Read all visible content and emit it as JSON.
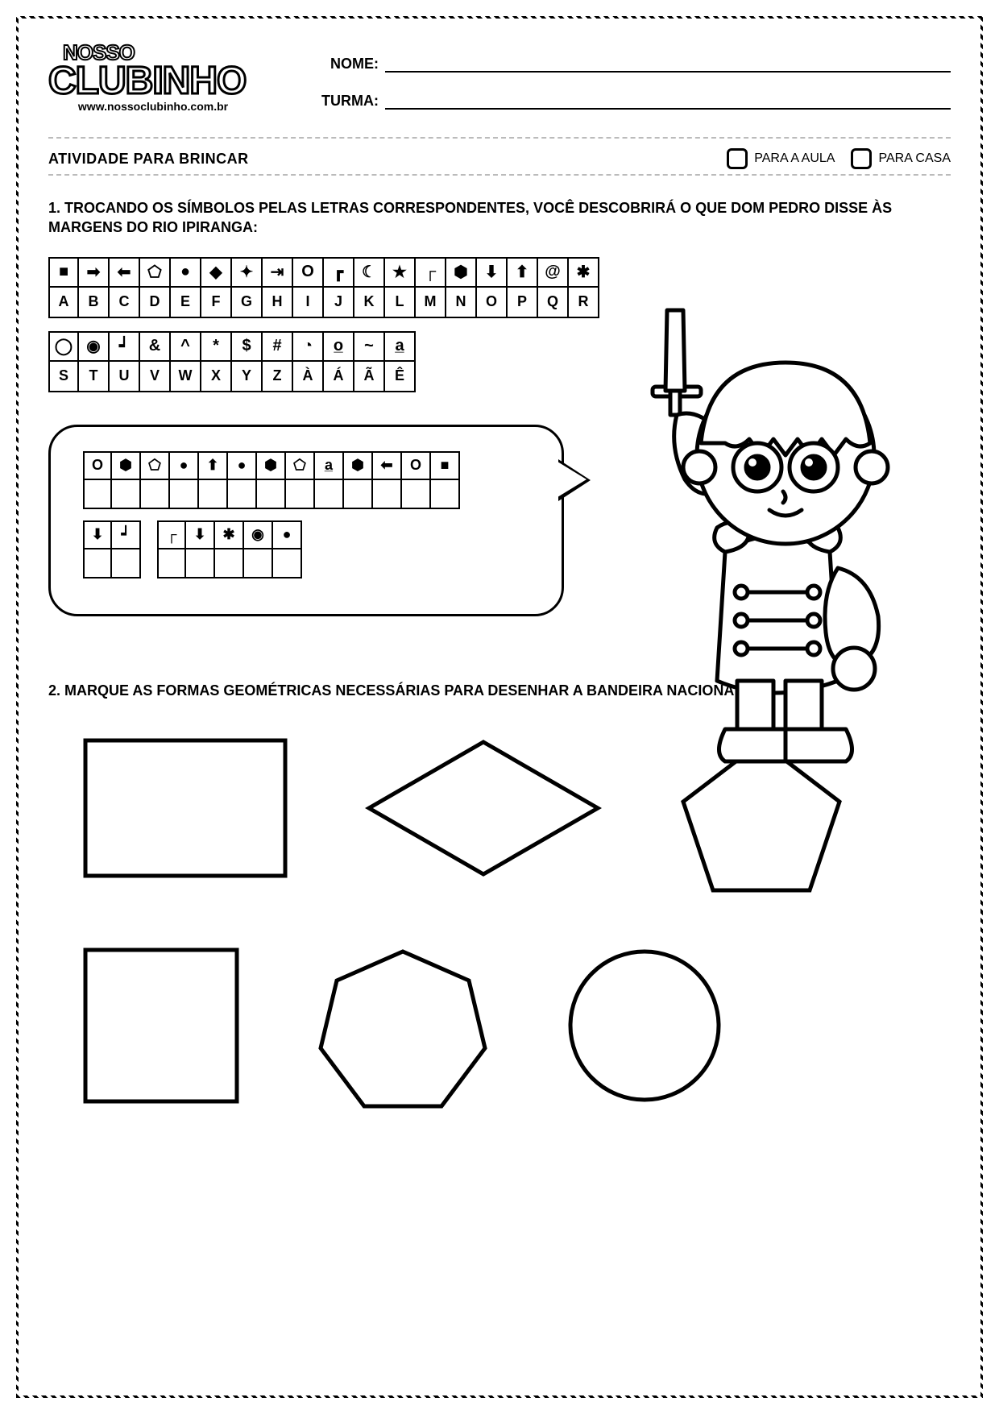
{
  "logo": {
    "line1": "NOSSO",
    "line2": "CLUBINHO",
    "url": "www.nossoclubinho.com.br"
  },
  "fields": {
    "name_label": "NOME:",
    "class_label": "TURMA:"
  },
  "banner": {
    "title": "ATIVIDADE PARA BRINCAR",
    "check1": "PARA A AULA",
    "check2": "PARA CASA"
  },
  "q1": {
    "text": "1. TROCANDO OS SÍMBOLOS PELAS LETRAS CORRESPONDENTES, VOCÊ DESCOBRIRÁ O QUE DOM PEDRO DISSE ÀS MARGENS DO RIO IPIRANGA:",
    "key1_symbols": [
      "■",
      "➡",
      "⬅",
      "⬠",
      "●",
      "◆",
      "✦",
      "⇥",
      "O",
      "┏",
      "☾",
      "★",
      "┌",
      "⬢",
      "⬇",
      "⬆",
      "@",
      "✱"
    ],
    "key1_letters": [
      "A",
      "B",
      "C",
      "D",
      "E",
      "F",
      "G",
      "H",
      "I",
      "J",
      "K",
      "L",
      "M",
      "N",
      "O",
      "P",
      "Q",
      "R"
    ],
    "key2_symbols": [
      "◯",
      "◉",
      "┙",
      "&",
      "^",
      "*",
      "$",
      "#",
      "◔",
      "o̲",
      "~",
      "a̲"
    ],
    "key2_letters": [
      "S",
      "T",
      "U",
      "V",
      "W",
      "X",
      "Y",
      "Z",
      "À",
      "Á",
      "Ã",
      "Ê"
    ],
    "answer_row1": [
      "O",
      "⬢",
      "⬠",
      "●",
      "⬆",
      "●",
      "⬢",
      "⬠",
      "a̲",
      "⬢",
      "⬅",
      "O",
      "■"
    ],
    "answer_row2_g1": [
      "⬇",
      "┙"
    ],
    "answer_row2_g2": [
      "┌",
      "⬇",
      "✱",
      "◉",
      "●"
    ]
  },
  "q2": {
    "text": "2. MARQUE  AS FORMAS GEOMÉTRICAS NECESSÁRIAS PARA DESENHAR A BANDEIRA NACIONAL:"
  },
  "style": {
    "stroke": "#000000",
    "fill": "none",
    "stroke_width": 4
  }
}
